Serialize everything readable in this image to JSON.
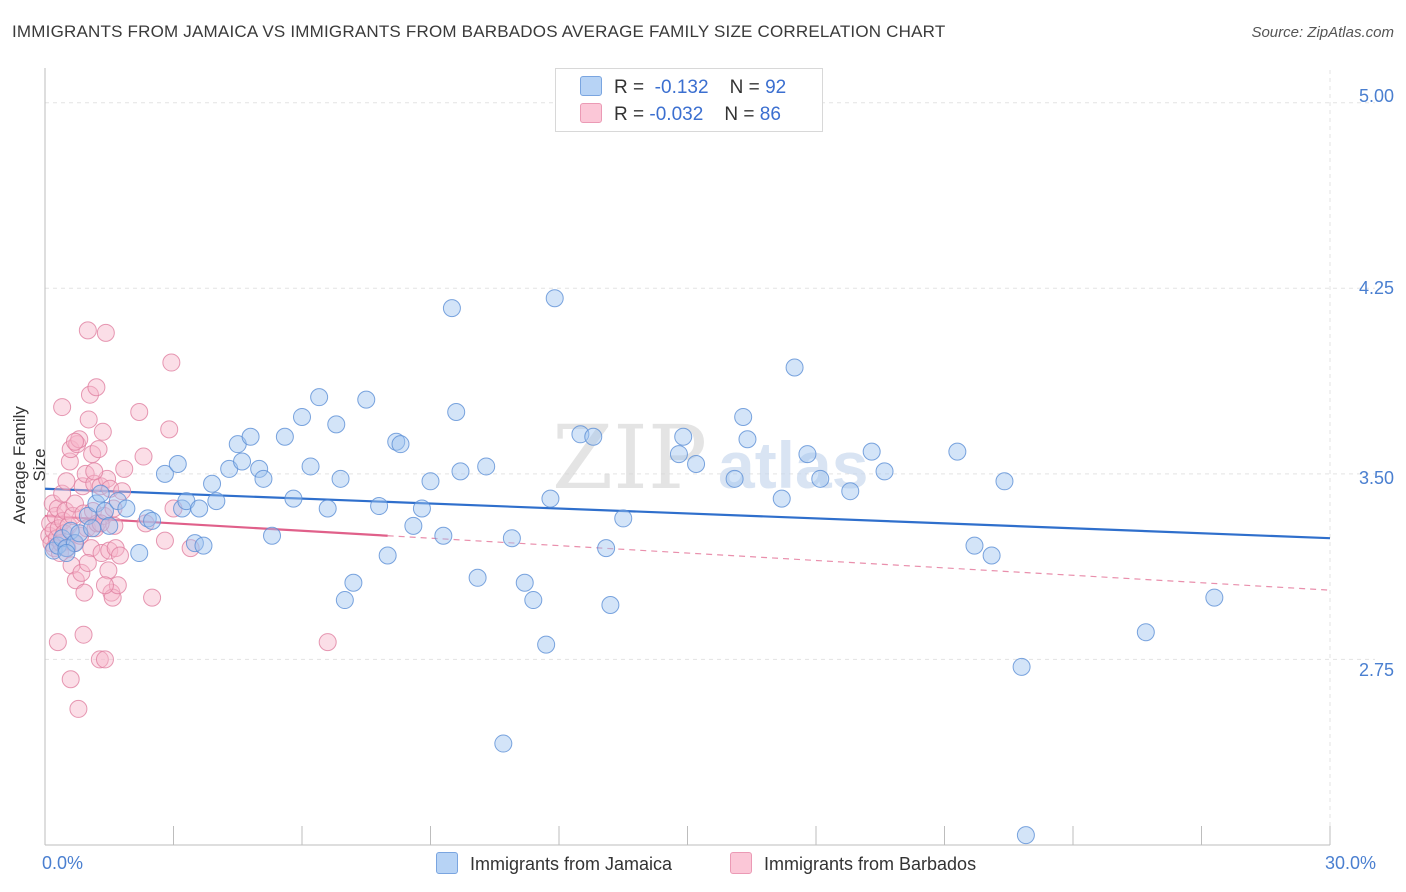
{
  "header": {
    "title": "IMMIGRANTS FROM JAMAICA VS IMMIGRANTS FROM BARBADOS AVERAGE FAMILY SIZE CORRELATION CHART",
    "source": "Source: ZipAtlas.com"
  },
  "legend": {
    "jamaica": {
      "r_label": "R =",
      "r_value": "-0.132",
      "n_label": "N =",
      "n_value": "92"
    },
    "barbados": {
      "r_label": "R =",
      "r_value": "-0.032",
      "n_label": "N =",
      "n_value": "86"
    }
  },
  "watermark": {
    "zip": "ZIP",
    "atlas": "atlas"
  },
  "colors": {
    "jamaica_fill": "#9dc3f0",
    "jamaica_stroke": "#5b8fd6",
    "jamaica_line": "#2f6fcc",
    "barbados_fill": "#f7b5c9",
    "barbados_stroke": "#e07fa0",
    "barbados_line": "#e0608a",
    "tick_label": "#4a7fd0",
    "grid": "#e3e3e3"
  },
  "chart_data": {
    "type": "scatter",
    "title": "IMMIGRANTS FROM JAMAICA VS IMMIGRANTS FROM BARBADOS AVERAGE FAMILY SIZE CORRELATION CHART",
    "xlabel": "",
    "ylabel": "Average Family Size",
    "xlim": [
      0,
      30
    ],
    "ylim": [
      2.0,
      5.1
    ],
    "x_tick_labels": [
      "0.0%",
      "30.0%"
    ],
    "y_ticks": [
      2.75,
      3.5,
      4.25,
      5.0
    ],
    "y_tick_labels": [
      "2.75",
      "3.50",
      "4.25",
      "5.00"
    ],
    "grid": true,
    "legend_position": "top-center",
    "series": [
      {
        "name": "Immigrants from Jamaica",
        "points": [
          [
            0.2,
            3.19
          ],
          [
            0.3,
            3.21
          ],
          [
            0.4,
            3.24
          ],
          [
            0.5,
            3.2
          ],
          [
            0.6,
            3.27
          ],
          [
            0.7,
            3.22
          ],
          [
            0.8,
            3.26
          ],
          [
            1.0,
            3.33
          ],
          [
            1.1,
            3.28
          ],
          [
            1.2,
            3.38
          ],
          [
            1.4,
            3.35
          ],
          [
            1.5,
            3.29
          ],
          [
            1.7,
            3.39
          ],
          [
            1.9,
            3.36
          ],
          [
            2.2,
            3.18
          ],
          [
            2.4,
            3.32
          ],
          [
            2.5,
            3.31
          ],
          [
            2.8,
            3.5
          ],
          [
            3.1,
            3.54
          ],
          [
            3.2,
            3.36
          ],
          [
            3.3,
            3.39
          ],
          [
            3.5,
            3.22
          ],
          [
            3.6,
            3.36
          ],
          [
            3.7,
            3.21
          ],
          [
            3.9,
            3.46
          ],
          [
            4.0,
            3.39
          ],
          [
            4.3,
            3.52
          ],
          [
            4.5,
            3.62
          ],
          [
            4.6,
            3.55
          ],
          [
            4.8,
            3.65
          ],
          [
            5.0,
            3.52
          ],
          [
            5.1,
            3.48
          ],
          [
            5.3,
            3.25
          ],
          [
            5.6,
            3.65
          ],
          [
            5.8,
            3.4
          ],
          [
            6.0,
            3.73
          ],
          [
            6.2,
            3.53
          ],
          [
            6.4,
            3.81
          ],
          [
            6.6,
            3.36
          ],
          [
            6.8,
            3.7
          ],
          [
            6.9,
            3.48
          ],
          [
            7.0,
            2.99
          ],
          [
            7.2,
            3.06
          ],
          [
            7.5,
            3.8
          ],
          [
            7.8,
            3.37
          ],
          [
            8.0,
            3.17
          ],
          [
            8.2,
            3.63
          ],
          [
            8.3,
            3.62
          ],
          [
            8.6,
            3.29
          ],
          [
            8.8,
            3.36
          ],
          [
            9.0,
            3.47
          ],
          [
            9.3,
            3.25
          ],
          [
            9.5,
            4.17
          ],
          [
            9.6,
            3.75
          ],
          [
            9.7,
            3.51
          ],
          [
            10.1,
            3.08
          ],
          [
            10.3,
            3.53
          ],
          [
            10.7,
            2.41
          ],
          [
            10.9,
            3.24
          ],
          [
            11.2,
            3.06
          ],
          [
            11.4,
            2.99
          ],
          [
            11.7,
            2.81
          ],
          [
            11.8,
            3.4
          ],
          [
            11.9,
            4.21
          ],
          [
            12.5,
            3.66
          ],
          [
            12.8,
            3.65
          ],
          [
            13.1,
            3.2
          ],
          [
            13.2,
            2.97
          ],
          [
            13.5,
            3.32
          ],
          [
            14.8,
            3.58
          ],
          [
            14.9,
            3.65
          ],
          [
            15.2,
            3.54
          ],
          [
            16.1,
            3.48
          ],
          [
            16.3,
            3.73
          ],
          [
            16.4,
            3.64
          ],
          [
            17.2,
            3.4
          ],
          [
            17.5,
            3.93
          ],
          [
            17.8,
            3.58
          ],
          [
            18.1,
            3.48
          ],
          [
            18.8,
            3.43
          ],
          [
            19.3,
            3.59
          ],
          [
            19.6,
            3.51
          ],
          [
            21.3,
            3.59
          ],
          [
            21.7,
            3.21
          ],
          [
            22.1,
            3.17
          ],
          [
            22.4,
            3.47
          ],
          [
            22.8,
            2.72
          ],
          [
            22.9,
            2.04
          ],
          [
            25.7,
            2.86
          ],
          [
            27.3,
            3.0
          ],
          [
            0.5,
            3.18
          ],
          [
            1.3,
            3.42
          ]
        ]
      },
      {
        "name": "Immigrants from Barbados",
        "points": [
          [
            0.1,
            3.25
          ],
          [
            0.12,
            3.3
          ],
          [
            0.15,
            3.22
          ],
          [
            0.18,
            3.38
          ],
          [
            0.2,
            3.27
          ],
          [
            0.22,
            3.2
          ],
          [
            0.25,
            3.33
          ],
          [
            0.28,
            3.24
          ],
          [
            0.3,
            3.36
          ],
          [
            0.32,
            3.28
          ],
          [
            0.35,
            3.18
          ],
          [
            0.38,
            3.22
          ],
          [
            0.4,
            3.42
          ],
          [
            0.42,
            3.31
          ],
          [
            0.45,
            3.26
          ],
          [
            0.48,
            3.35
          ],
          [
            0.5,
            3.47
          ],
          [
            0.52,
            3.2
          ],
          [
            0.55,
            3.29
          ],
          [
            0.58,
            3.55
          ],
          [
            0.6,
            3.6
          ],
          [
            0.62,
            3.13
          ],
          [
            0.65,
            3.33
          ],
          [
            0.68,
            3.22
          ],
          [
            0.7,
            3.38
          ],
          [
            0.72,
            3.07
          ],
          [
            0.75,
            3.62
          ],
          [
            0.78,
            2.55
          ],
          [
            0.8,
            3.64
          ],
          [
            0.82,
            3.25
          ],
          [
            0.85,
            3.1
          ],
          [
            0.88,
            3.45
          ],
          [
            0.9,
            3.34
          ],
          [
            0.92,
            3.02
          ],
          [
            0.95,
            3.5
          ],
          [
            0.98,
            3.28
          ],
          [
            1.0,
            4.08
          ],
          [
            1.02,
            3.72
          ],
          [
            1.05,
            3.82
          ],
          [
            1.08,
            3.2
          ],
          [
            1.1,
            3.58
          ],
          [
            1.12,
            3.35
          ],
          [
            1.15,
            3.46
          ],
          [
            1.18,
            3.28
          ],
          [
            1.2,
            3.85
          ],
          [
            1.22,
            3.3
          ],
          [
            1.25,
            3.6
          ],
          [
            1.28,
            2.75
          ],
          [
            1.3,
            3.45
          ],
          [
            1.32,
            3.18
          ],
          [
            1.35,
            3.67
          ],
          [
            1.38,
            3.33
          ],
          [
            1.4,
            2.75
          ],
          [
            1.42,
            4.07
          ],
          [
            1.45,
            3.48
          ],
          [
            1.48,
            3.11
          ],
          [
            1.5,
            3.19
          ],
          [
            1.52,
            3.44
          ],
          [
            1.55,
            3.02
          ],
          [
            1.58,
            3.0
          ],
          [
            1.6,
            3.36
          ],
          [
            1.62,
            3.29
          ],
          [
            1.65,
            3.2
          ],
          [
            1.7,
            3.05
          ],
          [
            1.75,
            3.17
          ],
          [
            1.8,
            3.43
          ],
          [
            1.85,
            3.52
          ],
          [
            2.2,
            3.75
          ],
          [
            2.3,
            3.57
          ],
          [
            2.35,
            3.3
          ],
          [
            2.5,
            3.0
          ],
          [
            2.8,
            3.23
          ],
          [
            2.9,
            3.68
          ],
          [
            2.95,
            3.95
          ],
          [
            3.0,
            3.36
          ],
          [
            3.4,
            3.2
          ],
          [
            6.6,
            2.82
          ],
          [
            0.3,
            2.82
          ],
          [
            0.4,
            3.77
          ],
          [
            0.6,
            2.67
          ],
          [
            0.7,
            3.63
          ],
          [
            0.9,
            2.85
          ],
          [
            1.0,
            3.14
          ],
          [
            1.15,
            3.51
          ],
          [
            1.3,
            3.3
          ],
          [
            1.4,
            3.05
          ]
        ]
      }
    ],
    "trend_lines": [
      {
        "series": "Immigrants from Jamaica",
        "x": [
          0,
          30
        ],
        "y": [
          3.44,
          3.24
        ]
      },
      {
        "series": "Immigrants from Barbados",
        "x": [
          0,
          30
        ],
        "y": [
          3.33,
          3.03
        ],
        "solid_until_x": 8
      }
    ]
  },
  "bottom_legend": [
    {
      "label": "Immigrants from Jamaica"
    },
    {
      "label": "Immigrants from Barbados"
    }
  ]
}
